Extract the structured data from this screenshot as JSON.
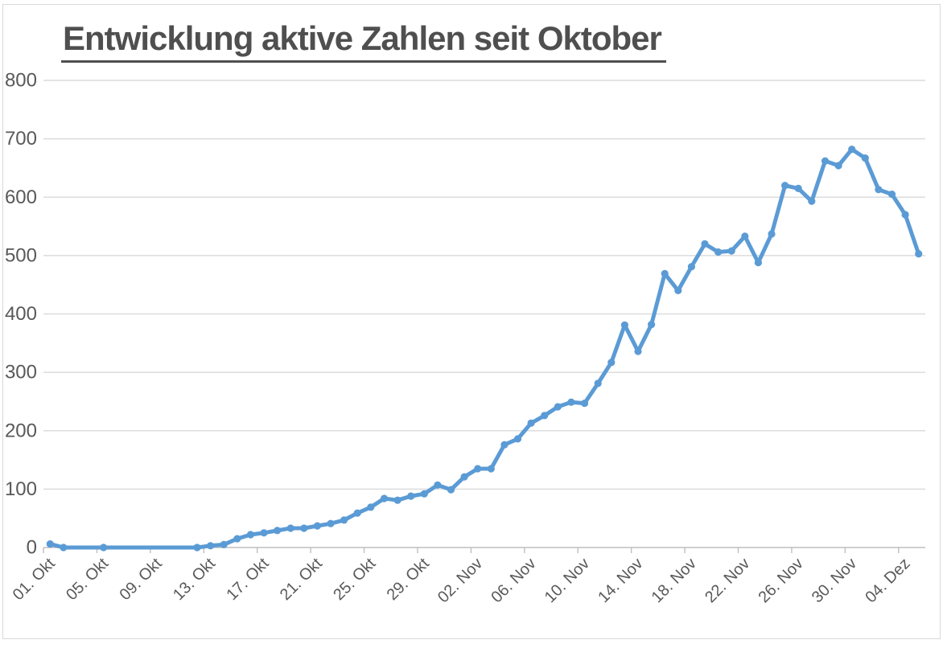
{
  "title": {
    "text": "Entwicklung aktive Zahlen seit Oktober"
  },
  "colors": {
    "series": "#5b9bd5",
    "gridline": "#dcdcdc",
    "axis": "#bfbfbf",
    "tick_label": "#595959",
    "title_text": "#4f4f4f",
    "frame": "#d9d9d9",
    "background": "#ffffff"
  },
  "chart_data": {
    "type": "line",
    "title": "Entwicklung aktive Zahlen seit Oktober",
    "grid": "horizontal",
    "legend": "none",
    "ylim": [
      0,
      800
    ],
    "y_ticks": [
      0,
      100,
      200,
      300,
      400,
      500,
      600,
      700,
      800
    ],
    "y_tick_labels": [
      "0",
      "100",
      "200",
      "300",
      "400",
      "500",
      "600",
      "700",
      "800"
    ],
    "x_tick_labels": [
      "01. Okt",
      "05. Okt",
      "09. Okt",
      "13. Okt",
      "17. Okt",
      "21. Okt",
      "25. Okt",
      "29. Okt",
      "02. Nov",
      "06. Nov",
      "10. Nov",
      "14. Nov",
      "18. Nov",
      "22. Nov",
      "26. Nov",
      "30. Nov",
      "04. Dez"
    ],
    "x_tick_interval_days": 4,
    "x_unit": "day",
    "n_points": 66,
    "values": [
      6,
      0,
      0,
      0,
      0,
      0,
      0,
      0,
      0,
      0,
      0,
      0,
      3,
      5,
      15,
      22,
      25,
      29,
      33,
      33,
      37,
      41,
      47,
      59,
      69,
      84,
      81,
      88,
      92,
      107,
      99,
      121,
      135,
      135,
      176,
      186,
      213,
      226,
      241,
      249,
      247,
      281,
      317,
      381,
      336,
      382,
      469,
      440,
      481,
      520,
      506,
      508,
      533,
      488,
      537,
      620,
      615,
      593,
      662,
      654,
      682,
      667,
      613,
      605,
      570,
      503
    ],
    "marker_hidden_indices": [
      2,
      3,
      5,
      6,
      7,
      8,
      9,
      10
    ]
  }
}
